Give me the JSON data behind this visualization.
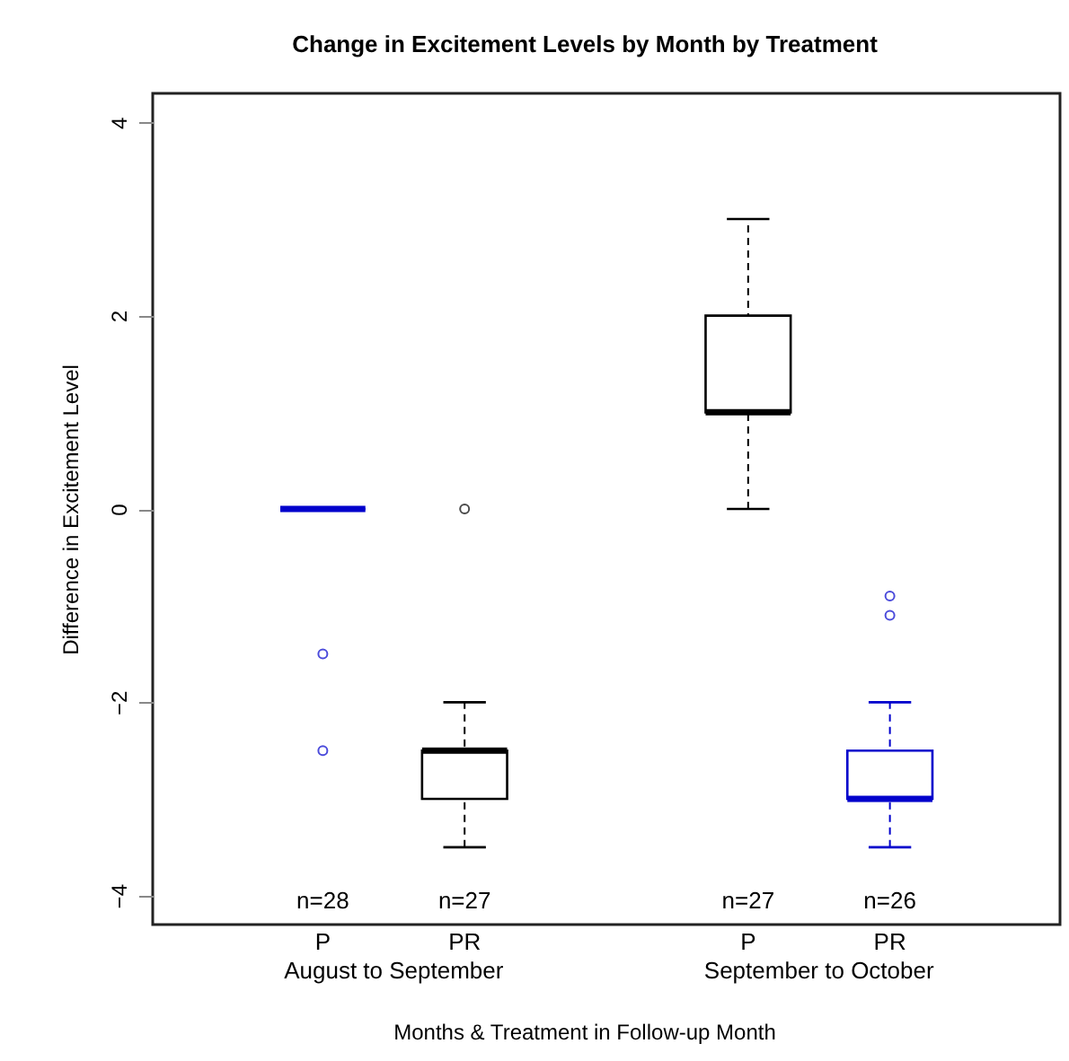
{
  "chart_data": {
    "type": "box",
    "title": "Change in Excitement Levels by Month by Treatment",
    "xlabel": "Months & Treatment in Follow-up Month",
    "ylabel": "Difference in Excitement Level",
    "categories": [
      "P",
      "PR",
      "P",
      "PR"
    ],
    "colors": [
      "#0000cc",
      "#000000",
      "#000000",
      "#0000cc"
    ],
    "boxes": [
      {
        "low": 0,
        "q1": 0,
        "median": 0,
        "q3": 0,
        "high": 0,
        "outliers": [
          -1.5,
          -2.5
        ]
      },
      {
        "low": -3.5,
        "q1": -3,
        "median": -2.5,
        "q3": -2.5,
        "high": -2,
        "outliers": [
          0
        ]
      },
      {
        "low": 0,
        "q1": 1,
        "median": 1,
        "q3": 2,
        "high": 3
      },
      {
        "low": -3.5,
        "q1": -3,
        "median": -3,
        "q3": -2.5,
        "high": -2,
        "outliers": [
          -0.9,
          -1.1
        ]
      }
    ],
    "annotations": [
      "n=28",
      "n=27",
      "n=27",
      "n=26",
      "August to September",
      "September to October"
    ],
    "ylim": [
      -4.3,
      4.3
    ],
    "yticks": [
      -4,
      -2,
      0,
      2,
      4
    ],
    "grid": false
  }
}
